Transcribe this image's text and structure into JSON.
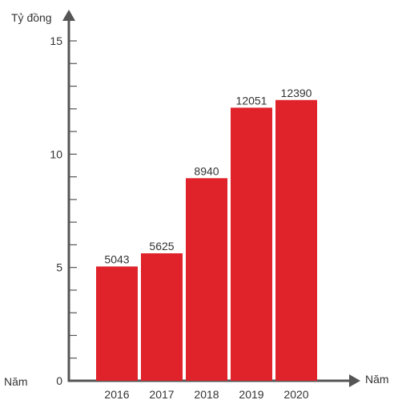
{
  "chart_data": {
    "type": "bar",
    "categories": [
      "2016",
      "2017",
      "2018",
      "2019",
      "2020"
    ],
    "values": [
      5043,
      5625,
      8940,
      12051,
      12390
    ],
    "data_labels": [
      "5043",
      "5625",
      "8940",
      "12051",
      "12390"
    ],
    "title": "",
    "ylabel": "Tỷ đồng",
    "xlabel": "Năm",
    "corner_label": "Năm",
    "ylim": [
      0,
      16000
    ],
    "y_ticks": [
      0,
      5,
      10,
      15
    ],
    "y_tick_values": [
      0,
      5000,
      10000,
      15000
    ],
    "y_minor_step": 1000,
    "grid": false,
    "colors": {
      "bar": "#e0222a",
      "axis": "#555555",
      "text": "#333333"
    }
  }
}
